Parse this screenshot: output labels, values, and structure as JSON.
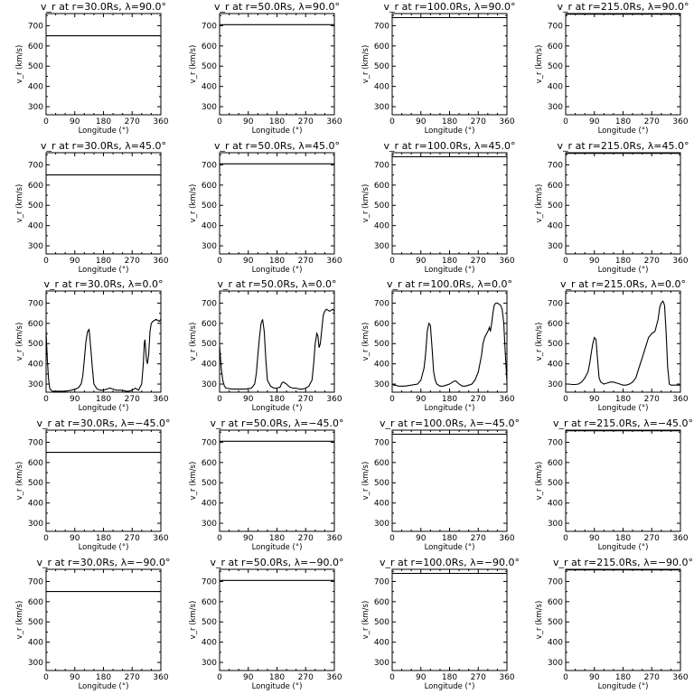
{
  "figure": {
    "rows": 5,
    "cols": 4,
    "xlabel": "Longitude (°)",
    "ylabel": "v_r (km/s)",
    "xticks": [
      0,
      90,
      180,
      270,
      360
    ],
    "yticks": [
      300,
      400,
      500,
      600,
      700
    ],
    "xlim": [
      0,
      360
    ],
    "ylim": [
      260,
      760
    ]
  },
  "chart_data": [
    {
      "type": "line",
      "title": "v_r at r=30.0Rs, λ=90.0°",
      "xlabel": "Longitude (°)",
      "ylabel": "v_r (km/s)",
      "xlim": [
        0,
        360
      ],
      "ylim": [
        260,
        760
      ],
      "series": [
        {
          "x": [
            0,
            360
          ],
          "y": [
            650,
            650
          ]
        }
      ]
    },
    {
      "type": "line",
      "title": "v_r at r=50.0Rs, λ=90.0°",
      "xlabel": "Longitude (°)",
      "ylabel": "v_r (km/s)",
      "xlim": [
        0,
        360
      ],
      "ylim": [
        260,
        760
      ],
      "series": [
        {
          "x": [
            0,
            360
          ],
          "y": [
            705,
            705
          ]
        }
      ]
    },
    {
      "type": "line",
      "title": "v_r at r=100.0Rs, λ=90.0°",
      "xlabel": "Longitude (°)",
      "ylabel": "v_r (km/s)",
      "xlim": [
        0,
        360
      ],
      "ylim": [
        260,
        760
      ],
      "series": [
        {
          "x": [
            0,
            360
          ],
          "y": [
            740,
            740
          ]
        }
      ]
    },
    {
      "type": "line",
      "title": "v_r at r=215.0Rs, λ=90.0°",
      "xlabel": "Longitude (°)",
      "ylabel": "v_r (km/s)",
      "xlim": [
        0,
        360
      ],
      "ylim": [
        260,
        760
      ],
      "series": [
        {
          "x": [
            0,
            360
          ],
          "y": [
            757,
            757
          ]
        }
      ]
    },
    {
      "type": "line",
      "title": "v_r at r=30.0Rs, λ=45.0°",
      "xlabel": "Longitude (°)",
      "ylabel": "v_r (km/s)",
      "xlim": [
        0,
        360
      ],
      "ylim": [
        260,
        760
      ],
      "series": [
        {
          "x": [
            0,
            360
          ],
          "y": [
            650,
            650
          ]
        }
      ]
    },
    {
      "type": "line",
      "title": "v_r at r=50.0Rs, λ=45.0°",
      "xlabel": "Longitude (°)",
      "ylabel": "v_r (km/s)",
      "xlim": [
        0,
        360
      ],
      "ylim": [
        260,
        760
      ],
      "series": [
        {
          "x": [
            0,
            360
          ],
          "y": [
            705,
            705
          ]
        }
      ]
    },
    {
      "type": "line",
      "title": "v_r at r=100.0Rs, λ=45.0°",
      "xlabel": "Longitude (°)",
      "ylabel": "v_r (km/s)",
      "xlim": [
        0,
        360
      ],
      "ylim": [
        260,
        760
      ],
      "series": [
        {
          "x": [
            0,
            360
          ],
          "y": [
            740,
            740
          ]
        }
      ]
    },
    {
      "type": "line",
      "title": "v_r at r=215.0Rs, λ=45.0°",
      "xlabel": "Longitude (°)",
      "ylabel": "v_r (km/s)",
      "xlim": [
        0,
        360
      ],
      "ylim": [
        260,
        760
      ],
      "series": [
        {
          "x": [
            0,
            360
          ],
          "y": [
            757,
            757
          ]
        }
      ]
    },
    {
      "type": "line",
      "title": "v_r at r=30.0Rs, λ=0.0°",
      "xlabel": "Longitude (°)",
      "ylabel": "v_r (km/s)",
      "xlim": [
        0,
        360
      ],
      "ylim": [
        260,
        760
      ],
      "series": [
        {
          "x": [
            0,
            4,
            8,
            12,
            20,
            40,
            60,
            80,
            100,
            110,
            115,
            120,
            125,
            130,
            135,
            140,
            145,
            150,
            160,
            170,
            180,
            190,
            200,
            210,
            220,
            230,
            240,
            250,
            260,
            270,
            280,
            290,
            300,
            305,
            308,
            310,
            312,
            315,
            318,
            322,
            326,
            330,
            335,
            340,
            345,
            350,
            355,
            360
          ],
          "y": [
            560,
            420,
            320,
            275,
            265,
            265,
            265,
            270,
            280,
            300,
            340,
            420,
            510,
            560,
            570,
            480,
            380,
            300,
            275,
            270,
            270,
            275,
            280,
            275,
            270,
            270,
            270,
            265,
            265,
            270,
            280,
            270,
            300,
            400,
            500,
            520,
            480,
            420,
            400,
            450,
            560,
            600,
            610,
            615,
            620,
            615,
            610,
            620
          ]
        }
      ]
    },
    {
      "type": "line",
      "title": "v_r at r=50.0Rs, λ=0.0°",
      "xlabel": "Longitude (°)",
      "ylabel": "v_r (km/s)",
      "xlim": [
        0,
        360
      ],
      "ylim": [
        260,
        760
      ],
      "series": [
        {
          "x": [
            0,
            5,
            10,
            15,
            20,
            40,
            60,
            80,
            100,
            110,
            115,
            120,
            125,
            130,
            135,
            140,
            145,
            150,
            160,
            170,
            180,
            190,
            195,
            200,
            210,
            220,
            230,
            240,
            250,
            260,
            270,
            280,
            290,
            295,
            300,
            305,
            308,
            312,
            316,
            320,
            325,
            330,
            335,
            340,
            345,
            350,
            355,
            360
          ],
          "y": [
            490,
            380,
            320,
            290,
            280,
            275,
            275,
            275,
            280,
            300,
            350,
            440,
            530,
            600,
            620,
            560,
            420,
            320,
            290,
            280,
            280,
            285,
            305,
            310,
            300,
            285,
            280,
            280,
            275,
            275,
            280,
            290,
            320,
            400,
            500,
            550,
            540,
            480,
            500,
            560,
            640,
            660,
            670,
            665,
            660,
            665,
            670,
            660
          ]
        }
      ]
    },
    {
      "type": "line",
      "title": "v_r at r=100.0Rs, λ=0.0°",
      "xlabel": "Longitude (°)",
      "ylabel": "v_r (km/s)",
      "xlim": [
        0,
        360
      ],
      "ylim": [
        260,
        760
      ],
      "series": [
        {
          "x": [
            0,
            5,
            10,
            20,
            40,
            60,
            80,
            90,
            100,
            105,
            110,
            115,
            120,
            125,
            130,
            135,
            140,
            150,
            160,
            170,
            180,
            190,
            195,
            200,
            210,
            220,
            230,
            240,
            250,
            260,
            270,
            280,
            285,
            290,
            300,
            305,
            308,
            312,
            316,
            320,
            325,
            330,
            335,
            340,
            345,
            350,
            355,
            360
          ],
          "y": [
            300,
            295,
            295,
            290,
            290,
            295,
            300,
            320,
            380,
            450,
            560,
            600,
            590,
            480,
            360,
            320,
            300,
            290,
            290,
            295,
            300,
            310,
            315,
            315,
            300,
            290,
            290,
            295,
            300,
            320,
            360,
            440,
            500,
            530,
            560,
            580,
            560,
            600,
            650,
            690,
            700,
            700,
            695,
            690,
            670,
            600,
            450,
            310
          ]
        }
      ]
    },
    {
      "type": "line",
      "title": "v_r at r=215.0Rs, λ=0.0°",
      "xlabel": "Longitude (°)",
      "ylabel": "v_r (km/s)",
      "xlim": [
        0,
        360
      ],
      "ylim": [
        260,
        760
      ],
      "series": [
        {
          "x": [
            0,
            10,
            20,
            30,
            40,
            50,
            60,
            70,
            75,
            80,
            85,
            90,
            95,
            100,
            105,
            110,
            120,
            130,
            140,
            150,
            160,
            170,
            180,
            190,
            200,
            210,
            220,
            230,
            240,
            250,
            260,
            270,
            275,
            280,
            290,
            295,
            300,
            305,
            310,
            315,
            320,
            325,
            330,
            335,
            340,
            350,
            360
          ],
          "y": [
            300,
            300,
            298,
            298,
            300,
            310,
            330,
            360,
            400,
            450,
            500,
            530,
            520,
            420,
            330,
            310,
            300,
            305,
            310,
            310,
            305,
            300,
            295,
            295,
            300,
            310,
            330,
            380,
            430,
            480,
            530,
            550,
            555,
            560,
            620,
            680,
            700,
            710,
            690,
            560,
            380,
            300,
            295,
            295,
            295,
            295,
            295
          ]
        }
      ]
    },
    {
      "type": "line",
      "title": "v_r at r=30.0Rs, λ=−45.0°",
      "xlabel": "Longitude (°)",
      "ylabel": "v_r (km/s)",
      "xlim": [
        0,
        360
      ],
      "ylim": [
        260,
        760
      ],
      "series": [
        {
          "x": [
            0,
            360
          ],
          "y": [
            650,
            650
          ]
        }
      ]
    },
    {
      "type": "line",
      "title": "v_r at r=50.0Rs, λ=−45.0°",
      "xlabel": "Longitude (°)",
      "ylabel": "v_r (km/s)",
      "xlim": [
        0,
        360
      ],
      "ylim": [
        260,
        760
      ],
      "series": [
        {
          "x": [
            0,
            360
          ],
          "y": [
            705,
            705
          ]
        }
      ]
    },
    {
      "type": "line",
      "title": "v_r at r=100.0Rs, λ=−45.0°",
      "xlabel": "Longitude (°)",
      "ylabel": "v_r (km/s)",
      "xlim": [
        0,
        360
      ],
      "ylim": [
        260,
        760
      ],
      "series": [
        {
          "x": [
            0,
            360
          ],
          "y": [
            740,
            740
          ]
        }
      ]
    },
    {
      "type": "line",
      "title": "v_r at r=215.0Rs, λ=−45.0°",
      "xlabel": "Longitude (°)",
      "ylabel": "v_r (km/s)",
      "xlim": [
        0,
        360
      ],
      "ylim": [
        260,
        760
      ],
      "series": [
        {
          "x": [
            0,
            360
          ],
          "y": [
            757,
            757
          ]
        }
      ]
    },
    {
      "type": "line",
      "title": "v_r at r=30.0Rs, λ=−90.0°",
      "xlabel": "Longitude (°)",
      "ylabel": "v_r (km/s)",
      "xlim": [
        0,
        360
      ],
      "ylim": [
        260,
        760
      ],
      "series": [
        {
          "x": [
            0,
            360
          ],
          "y": [
            650,
            650
          ]
        }
      ]
    },
    {
      "type": "line",
      "title": "v_r at r=50.0Rs, λ=−90.0°",
      "xlabel": "Longitude (°)",
      "ylabel": "v_r (km/s)",
      "xlim": [
        0,
        360
      ],
      "ylim": [
        260,
        760
      ],
      "series": [
        {
          "x": [
            0,
            360
          ],
          "y": [
            705,
            705
          ]
        }
      ]
    },
    {
      "type": "line",
      "title": "v_r at r=100.0Rs, λ=−90.0°",
      "xlabel": "Longitude (°)",
      "ylabel": "v_r (km/s)",
      "xlim": [
        0,
        360
      ],
      "ylim": [
        260,
        760
      ],
      "series": [
        {
          "x": [
            0,
            360
          ],
          "y": [
            740,
            740
          ]
        }
      ]
    },
    {
      "type": "line",
      "title": "v_r at r=215.0Rs, λ=−90.0°",
      "xlabel": "Longitude (°)",
      "ylabel": "v_r (km/s)",
      "xlim": [
        0,
        360
      ],
      "ylim": [
        260,
        760
      ],
      "series": [
        {
          "x": [
            0,
            360
          ],
          "y": [
            757,
            757
          ]
        }
      ]
    }
  ]
}
